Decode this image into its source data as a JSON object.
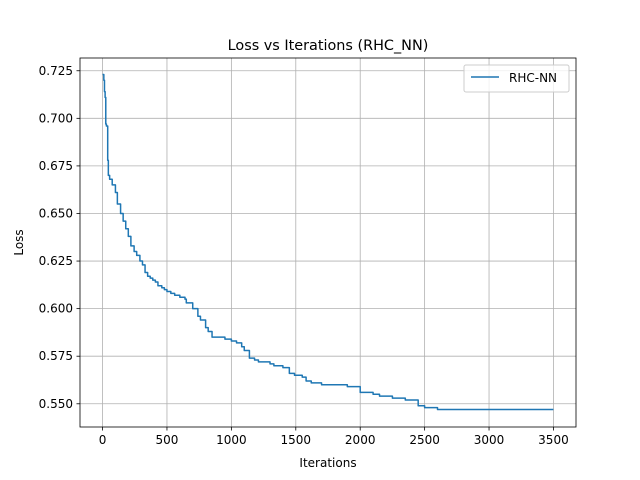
{
  "chart_data": {
    "type": "line",
    "title": "Loss vs Iterations (RHC_NN)",
    "xlabel": "Iterations",
    "ylabel": "Loss",
    "xlim": [
      -175,
      3675
    ],
    "ylim": [
      0.5378,
      0.7317
    ],
    "xticks": [
      0,
      500,
      1000,
      1500,
      2000,
      2500,
      3000,
      3500
    ],
    "xtick_labels": [
      "0",
      "500",
      "1000",
      "1500",
      "2000",
      "2500",
      "3000",
      "3500"
    ],
    "yticks": [
      0.55,
      0.575,
      0.6,
      0.625,
      0.65,
      0.675,
      0.7,
      0.725
    ],
    "ytick_labels": [
      "0.550",
      "0.575",
      "0.600",
      "0.625",
      "0.650",
      "0.675",
      "0.700",
      "0.725"
    ],
    "grid": true,
    "legend_position": "top-right",
    "series": [
      {
        "name": "RHC-NN",
        "color": "#1f77b4",
        "step": true,
        "x": [
          0,
          10,
          15,
          20,
          25,
          30,
          40,
          45,
          55,
          75,
          100,
          115,
          140,
          160,
          180,
          200,
          220,
          245,
          265,
          290,
          310,
          330,
          350,
          370,
          390,
          410,
          430,
          460,
          480,
          500,
          530,
          560,
          600,
          640,
          650,
          680,
          700,
          740,
          760,
          800,
          820,
          850,
          880,
          950,
          1000,
          1040,
          1080,
          1100,
          1140,
          1180,
          1210,
          1300,
          1330,
          1400,
          1450,
          1490,
          1550,
          1580,
          1620,
          1700,
          1800,
          1900,
          2000,
          2100,
          2150,
          2250,
          2350,
          2450,
          2500,
          2600,
          3000,
          3500
        ],
        "y": [
          0.723,
          0.72,
          0.714,
          0.711,
          0.697,
          0.696,
          0.678,
          0.67,
          0.668,
          0.665,
          0.661,
          0.655,
          0.65,
          0.646,
          0.642,
          0.638,
          0.633,
          0.63,
          0.628,
          0.625,
          0.623,
          0.619,
          0.617,
          0.616,
          0.615,
          0.614,
          0.612,
          0.611,
          0.61,
          0.609,
          0.608,
          0.607,
          0.606,
          0.605,
          0.603,
          0.603,
          0.6,
          0.596,
          0.594,
          0.59,
          0.588,
          0.585,
          0.585,
          0.584,
          0.583,
          0.582,
          0.58,
          0.578,
          0.574,
          0.573,
          0.572,
          0.571,
          0.57,
          0.569,
          0.566,
          0.565,
          0.564,
          0.562,
          0.561,
          0.56,
          0.56,
          0.559,
          0.556,
          0.555,
          0.554,
          0.553,
          0.552,
          0.549,
          0.548,
          0.547,
          0.547,
          0.547
        ]
      }
    ]
  }
}
